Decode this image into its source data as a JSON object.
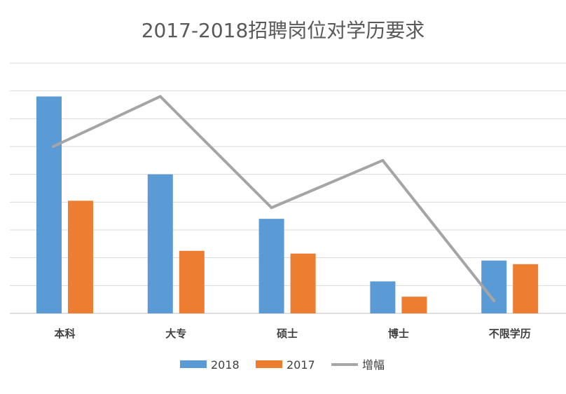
{
  "chart_data": {
    "type": "bar",
    "title": "2017-2018招聘岗位对学历要求",
    "xlabel": "",
    "ylabel": "",
    "categories": [
      "本科",
      "大专",
      "硕士",
      "博士",
      "不限学历"
    ],
    "series": [
      {
        "name": "2018",
        "kind": "bar",
        "color": "#5B9BD5",
        "values": [
          7.8,
          5.0,
          3.4,
          1.15,
          1.9
        ]
      },
      {
        "name": "2017",
        "kind": "bar",
        "color": "#ED7D31",
        "values": [
          4.05,
          2.25,
          2.15,
          0.6,
          1.77
        ]
      },
      {
        "name": "增幅",
        "kind": "line",
        "color": "#A5A5A5",
        "values": [
          6.0,
          7.8,
          3.8,
          5.5,
          0.45
        ]
      }
    ],
    "ylim": [
      0,
      9
    ],
    "gridlines": [
      0,
      1,
      2,
      3,
      4,
      5,
      6,
      7,
      8,
      9
    ],
    "grid": true,
    "y_tick_labels": false,
    "legend_position": "bottom"
  }
}
